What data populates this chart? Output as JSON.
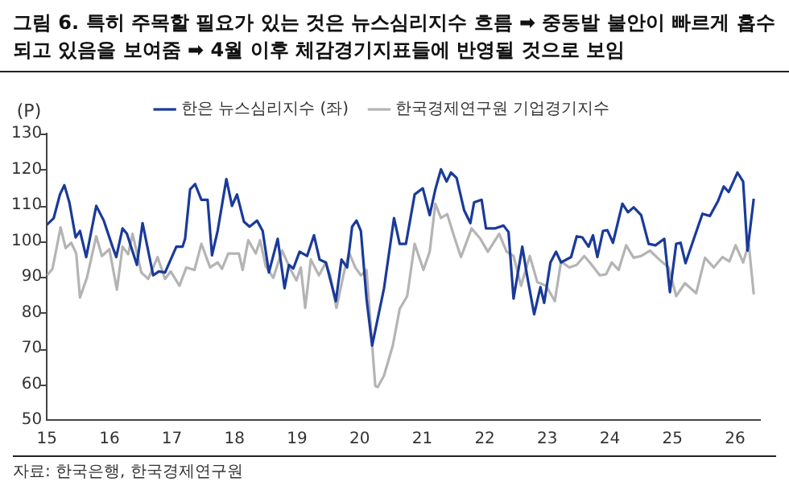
{
  "chart_data": {
    "type": "line",
    "title": "그림 6. 특히 주목할 필요가 있는 것은 뉴스심리지수 흐름 ➡ 중동발 불안이 빠르게 흡수되고 있음을 보여줌 ➡ 4월 이후 체감경기지표들에 반영될 것으로 보임",
    "ylabel": "(P)",
    "annotations": [
      "자료: 한국은행, 한국경제연구원"
    ],
    "legend": "top",
    "xlim": [
      15,
      26.4
    ],
    "xticks": [
      15,
      16,
      17,
      18,
      19,
      20,
      21,
      22,
      23,
      24,
      25,
      26
    ],
    "ylim": [
      50,
      130
    ],
    "yticks": [
      50,
      60,
      70,
      80,
      90,
      100,
      110,
      120,
      130
    ],
    "series": [
      {
        "name": "한국경제연구원 기업경기지수",
        "color": "#b4b4b4",
        "x": [
          15,
          15.09,
          15.22,
          15.3,
          15.39,
          15.47,
          15.53,
          15.64,
          15.79,
          15.88,
          16,
          16.12,
          16.21,
          16.3,
          16.37,
          16.51,
          16.62,
          16.77,
          16.89,
          16.98,
          17.12,
          17.23,
          17.36,
          17.47,
          17.61,
          17.73,
          17.8,
          17.9,
          18.07,
          18.13,
          18.22,
          18.34,
          18.41,
          18.5,
          18.62,
          18.76,
          18.9,
          18.99,
          19.06,
          19.13,
          19.22,
          19.35,
          19.46,
          19.53,
          19.63,
          19.74,
          19.83,
          19.93,
          20.02,
          20.11,
          20.25,
          20.29,
          20.39,
          20.53,
          20.64,
          20.76,
          20.88,
          21.02,
          21.12,
          21.21,
          21.3,
          21.4,
          21.51,
          21.62,
          21.79,
          21.93,
          22.05,
          22.23,
          22.35,
          22.46,
          22.58,
          22.72,
          22.84,
          22.98,
          23.12,
          23.22,
          23.35,
          23.47,
          23.59,
          23.68,
          23.84,
          23.94,
          24.03,
          24.14,
          24.26,
          24.38,
          24.5,
          24.64,
          24.79,
          24.94,
          25.06,
          25.2,
          25.38,
          25.52,
          25.66,
          25.8,
          25.91,
          26.01,
          26.13,
          26.22,
          26.3
        ],
        "values": [
          90.4,
          92.2,
          103.8,
          98,
          99.5,
          96.5,
          84.2,
          89.7,
          101.3,
          95.8,
          97.7,
          86.4,
          98.4,
          96.3,
          102,
          91.2,
          89.4,
          95.5,
          89.4,
          91.5,
          87.5,
          92.6,
          91.9,
          99.2,
          92.6,
          94,
          92.2,
          96.5,
          96.5,
          91.9,
          100.2,
          96.5,
          100.2,
          92.9,
          89.7,
          97.3,
          91.9,
          89,
          92.6,
          81.3,
          94.8,
          90.4,
          94,
          90.4,
          81.3,
          90.4,
          96.8,
          92.6,
          90.4,
          91.9,
          59.5,
          59.2,
          62.4,
          70.8,
          81,
          84.6,
          99.2,
          91.9,
          97,
          110.4,
          106.4,
          107.5,
          101.3,
          95.5,
          103.5,
          100.6,
          97,
          102,
          97,
          95.8,
          87.5,
          95.8,
          88.5,
          87.5,
          83.2,
          94.3,
          92.6,
          93.3,
          95.8,
          94,
          90.4,
          90.7,
          94,
          91.9,
          98.8,
          95.3,
          95.8,
          97.3,
          94.8,
          92.6,
          84.6,
          88.2,
          85.4,
          95.3,
          92.6,
          95.5,
          94.3,
          98.8,
          94,
          99.2,
          85.1
        ]
      },
      {
        "name": "한은 뉴스심리지수 (좌)",
        "color": "#1a3a9a",
        "x": [
          15,
          15.11,
          15.21,
          15.28,
          15.36,
          15.46,
          15.53,
          15.63,
          15.79,
          15.91,
          16.05,
          16.11,
          16.21,
          16.28,
          16.44,
          16.53,
          16.7,
          16.79,
          16.89,
          17.07,
          17.17,
          17.21,
          17.29,
          17.37,
          17.47,
          17.57,
          17.64,
          17.73,
          17.87,
          17.96,
          18.04,
          18.15,
          18.24,
          18.36,
          18.45,
          18.55,
          18.69,
          18.8,
          18.87,
          18.94,
          19.04,
          19.16,
          19.27,
          19.36,
          19.46,
          19.62,
          19.71,
          19.8,
          19.88,
          19.95,
          20.02,
          20.11,
          20.2,
          20.39,
          20.55,
          20.64,
          20.74,
          20.88,
          21.01,
          21.12,
          21.21,
          21.3,
          21.39,
          21.46,
          21.55,
          21.67,
          21.77,
          21.83,
          21.95,
          22.02,
          22.16,
          22.3,
          22.38,
          22.46,
          22.6,
          22.68,
          22.79,
          22.89,
          22.95,
          23.05,
          23.14,
          23.22,
          23.38,
          23.47,
          23.56,
          23.66,
          23.73,
          23.8,
          23.89,
          23.96,
          24.05,
          24.2,
          24.29,
          24.38,
          24.5,
          24.62,
          24.73,
          24.87,
          24.96,
          25.06,
          25.13,
          25.21,
          25.35,
          25.48,
          25.6,
          25.73,
          25.82,
          25.9,
          26.04,
          26.13,
          26.2,
          26.3
        ],
        "values": [
          104.5,
          106.4,
          113,
          115.6,
          110.8,
          101,
          102.8,
          95.5,
          109.8,
          105.7,
          98.4,
          95.5,
          103.5,
          102,
          93.3,
          105,
          90.4,
          91.5,
          91.2,
          98.4,
          98.4,
          100.6,
          114.4,
          115.9,
          111.5,
          111.5,
          96,
          102.8,
          117.3,
          109.8,
          113,
          105.4,
          104,
          105.7,
          102.8,
          91.2,
          100.6,
          86.8,
          93.3,
          92.3,
          97,
          95.8,
          101.6,
          94.8,
          94,
          83.2,
          94.8,
          92.6,
          104,
          105.7,
          102.8,
          83.9,
          70.8,
          86.8,
          106.4,
          99.2,
          99.2,
          113,
          114.7,
          107.2,
          114.4,
          120,
          116.6,
          119.1,
          117.6,
          108.6,
          105,
          110.8,
          111.5,
          103.5,
          103.5,
          104.3,
          102.5,
          83.9,
          98.4,
          90,
          79.5,
          87.1,
          82.7,
          94,
          97,
          94,
          95.5,
          101.3,
          101,
          98.4,
          101.6,
          95.5,
          102.8,
          103,
          99.5,
          110.4,
          108,
          109.4,
          107.2,
          99.2,
          98.8,
          100.6,
          85.7,
          99.2,
          99.5,
          93.8,
          101,
          107.6,
          107,
          111.2,
          115.2,
          113.7,
          119.1,
          116.6,
          97.3,
          111.8
        ]
      }
    ]
  }
}
